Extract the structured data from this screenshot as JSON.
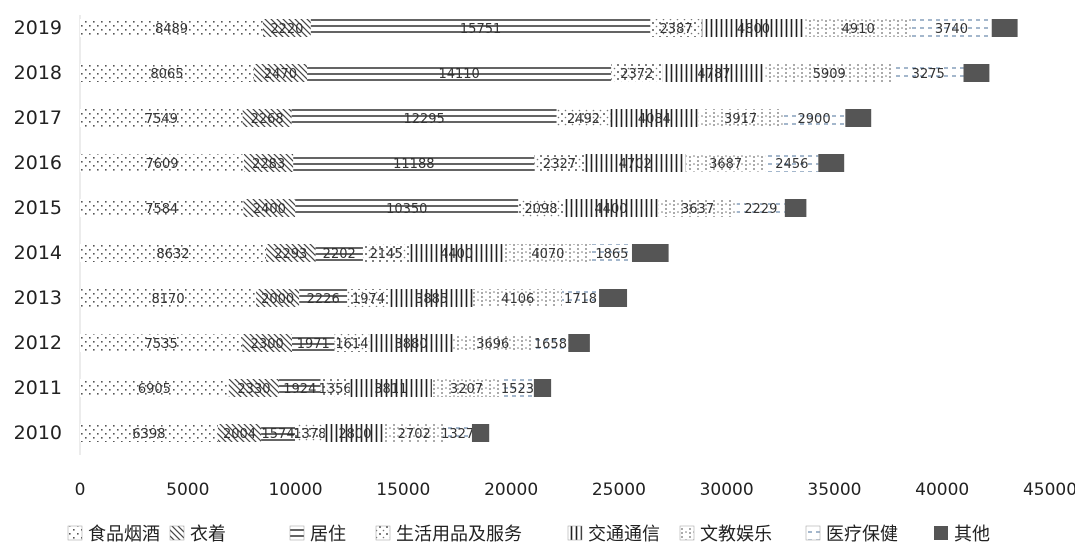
{
  "chart_data": {
    "type": "bar",
    "orientation": "horizontal",
    "stacked": true,
    "categories": [
      "2019",
      "2018",
      "2017",
      "2016",
      "2015",
      "2014",
      "2013",
      "2012",
      "2011",
      "2010"
    ],
    "series": [
      {
        "name": "食品烟酒",
        "values": [
          8489,
          8065,
          7549,
          7609,
          7584,
          8632,
          8170,
          7535,
          6905,
          6398
        ]
      },
      {
        "name": "衣着",
        "values": [
          2220,
          2470,
          2268,
          2283,
          2400,
          2293,
          2000,
          2300,
          2330,
          2004
        ]
      },
      {
        "name": "居住",
        "values": [
          15751,
          14110,
          12295,
          11188,
          10350,
          2202,
          2226,
          1971,
          1924,
          1574
        ]
      },
      {
        "name": "生活用品及服务",
        "values": [
          2387,
          2372,
          2492,
          2327,
          2098,
          2145,
          1974,
          1614,
          1356,
          1378
        ]
      },
      {
        "name": "交通通信",
        "values": [
          4800,
          4787,
          4084,
          4702,
          4400,
          4400,
          3885,
          3880,
          3811,
          2800
        ]
      },
      {
        "name": "文教娱乐",
        "values": [
          4910,
          5909,
          3917,
          3687,
          3637,
          4070,
          4106,
          3696,
          3207,
          2702
        ]
      },
      {
        "name": "医疗保健",
        "values": [
          3740,
          3275,
          2900,
          2456,
          2229,
          1865,
          1718,
          1658,
          1523,
          1327
        ]
      },
      {
        "name": "其他",
        "values": [
          1200,
          1200,
          1200,
          1200,
          1000,
          1700,
          1300,
          1000,
          800,
          800
        ]
      }
    ],
    "xlim": [
      0,
      45000
    ],
    "xticks": [
      "0",
      "5000",
      "10000",
      "15000",
      "20000",
      "25000",
      "30000",
      "35000",
      "40000",
      "45000"
    ],
    "legend_position": "bottom",
    "colors": {
      "text": "#222222",
      "axis": "#d9d9d9",
      "dark": "#555555",
      "label": "#333333",
      "medical_label": "#1f4e79"
    }
  }
}
